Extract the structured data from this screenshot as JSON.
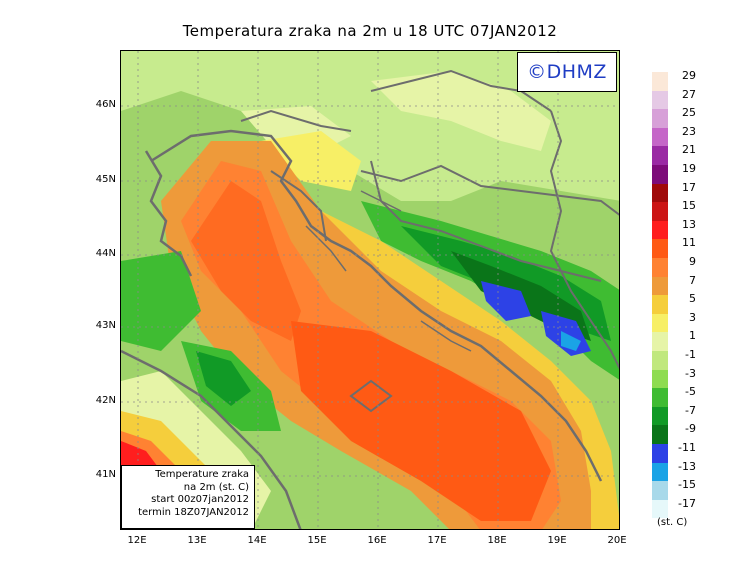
{
  "title": "Temperatura zraka na 2m u 18 UTC 07JAN2012",
  "logo": "©DHMZ",
  "info_box": {
    "line1": "Temperature zraka",
    "line2": "na 2m (st. C)",
    "line3": "start 00z07jan2012",
    "line4": "termin 18Z07JAN2012"
  },
  "axes": {
    "lat_labels": [
      "46N",
      "45N",
      "44N",
      "43N",
      "42N",
      "41N"
    ],
    "lon_labels": [
      "12E",
      "13E",
      "14E",
      "15E",
      "16E",
      "17E",
      "18E",
      "19E",
      "20E"
    ]
  },
  "legend": {
    "unit": "(st. C)",
    "labels": [
      "29",
      "27",
      "25",
      "23",
      "21",
      "19",
      "17",
      "15",
      "13",
      "11",
      "9",
      "7",
      "5",
      "3",
      "1",
      "-1",
      "-3",
      "-5",
      "-7",
      "-9",
      "-11",
      "-13",
      "-15",
      "-17"
    ],
    "colors": [
      "#fbe8d8",
      "#e5c9e5",
      "#d7a0d8",
      "#c566c8",
      "#9a2aa4",
      "#7d0c7a",
      "#a00a0a",
      "#cc1414",
      "#ff1e1e",
      "#ff5a14",
      "#ff8232",
      "#ee9a3a",
      "#f5ce3c",
      "#f7ef66",
      "#e6f4a7",
      "#c0e87d",
      "#8edc50",
      "#3fbc32",
      "#119a26",
      "#0a7519",
      "#2d42e6",
      "#1aa3e6",
      "#a8d9ea",
      "#e6f8fa"
    ]
  }
}
